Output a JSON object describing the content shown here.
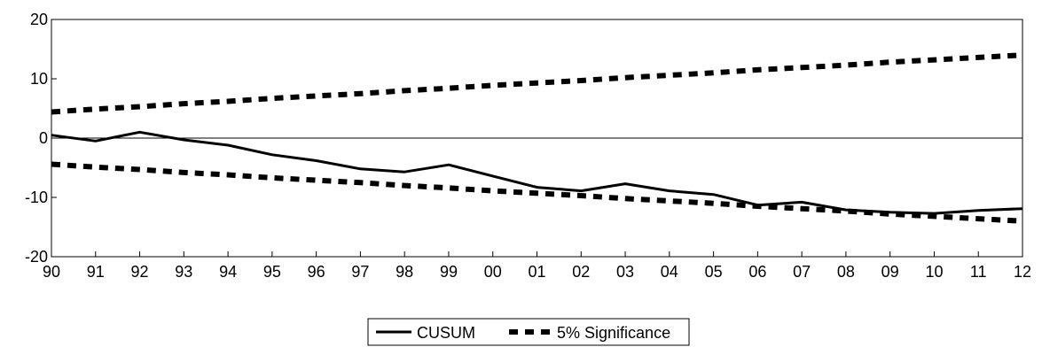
{
  "chart_data": {
    "type": "line",
    "title": "",
    "xlabel": "",
    "ylabel": "",
    "x": [
      "90",
      "91",
      "92",
      "93",
      "94",
      "95",
      "96",
      "97",
      "98",
      "99",
      "00",
      "01",
      "02",
      "03",
      "04",
      "05",
      "06",
      "07",
      "08",
      "09",
      "10",
      "11",
      "12"
    ],
    "ylim": [
      -20,
      20
    ],
    "yticks": [
      -20,
      -10,
      0,
      10,
      20
    ],
    "zero_line": true,
    "grid": false,
    "legend_position": "bottom-center",
    "series": [
      {
        "name": "CUSUM",
        "style": "solid",
        "color": "#000000",
        "values": [
          0.5,
          -0.5,
          1.0,
          -0.3,
          -1.2,
          -2.8,
          -3.8,
          -5.2,
          -5.7,
          -4.5,
          -6.4,
          -8.3,
          -8.9,
          -7.7,
          -8.9,
          -9.5,
          -11.3,
          -10.8,
          -12.1,
          -12.5,
          -12.7,
          -12.2,
          -11.9
        ]
      },
      {
        "name": "5% Significance",
        "style": "dashed",
        "color": "#000000",
        "values": [
          4.4,
          4.9,
          5.3,
          5.8,
          6.2,
          6.7,
          7.1,
          7.5,
          8.0,
          8.4,
          8.9,
          9.3,
          9.7,
          10.2,
          10.6,
          11.0,
          11.5,
          11.9,
          12.3,
          12.8,
          13.2,
          13.6,
          14.0
        ]
      },
      {
        "name": "5% Significance",
        "style": "dashed",
        "color": "#000000",
        "values": [
          -4.4,
          -4.9,
          -5.3,
          -5.8,
          -6.2,
          -6.7,
          -7.1,
          -7.5,
          -8.0,
          -8.4,
          -8.9,
          -9.3,
          -9.7,
          -10.2,
          -10.6,
          -11.0,
          -11.5,
          -11.9,
          -12.3,
          -12.8,
          -13.2,
          -13.6,
          -14.0
        ]
      }
    ],
    "legend": [
      {
        "label": "CUSUM",
        "style": "solid"
      },
      {
        "label": "5% Significance",
        "style": "dashed"
      }
    ]
  }
}
